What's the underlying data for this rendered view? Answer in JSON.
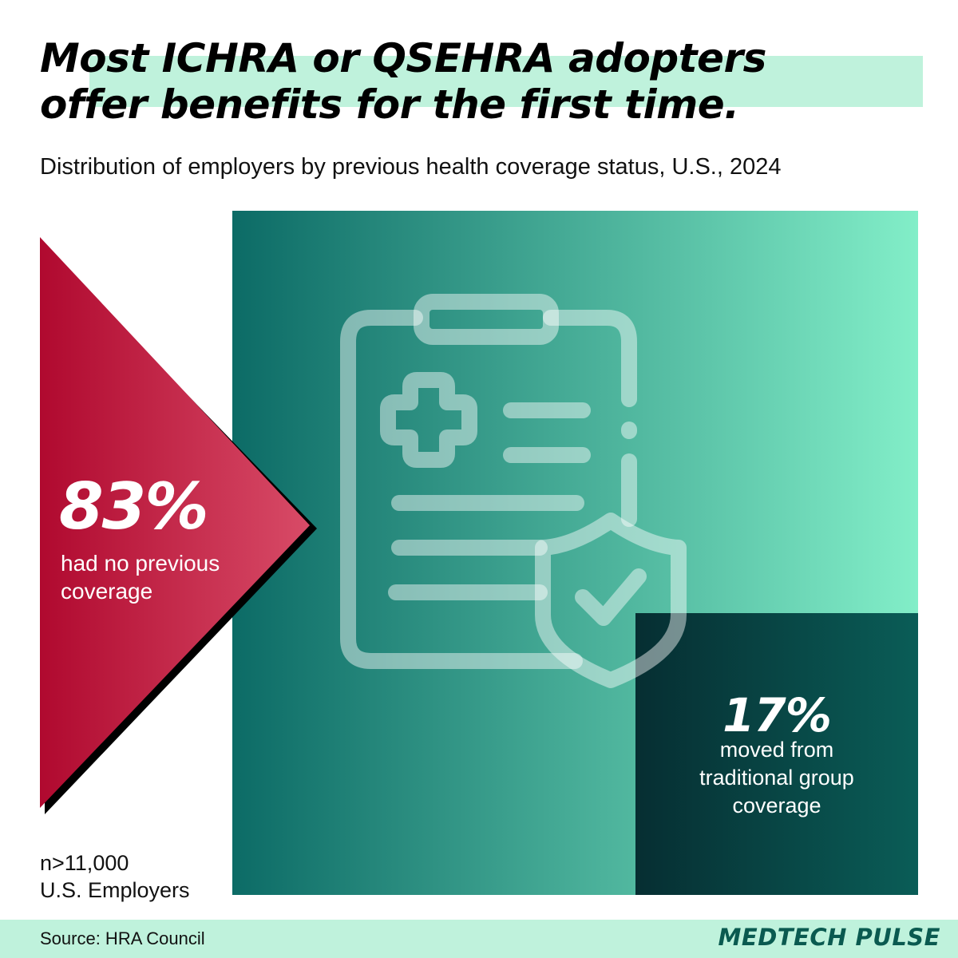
{
  "header": {
    "title_line1": "Most ICHRA or QSEHRA adopters",
    "title_line2": "offer benefits for the first time.",
    "subtitle": "Distribution of employers by previous health coverage status, U.S., 2024"
  },
  "chart_data": {
    "type": "area",
    "categories": [
      "had no previous coverage",
      "moved from traditional group coverage"
    ],
    "values": [
      83,
      17
    ],
    "value_labels": [
      "83%",
      "17%"
    ],
    "unit": "%",
    "title": "Most ICHRA or QSEHRA adopters offer benefits for the first time.",
    "subtitle": "Distribution of employers by previous health coverage status, U.S., 2024"
  },
  "labels": {
    "no_previous_value": "83%",
    "no_previous_desc_line1": "had no previous",
    "no_previous_desc_line2": "coverage",
    "moved_value": "17%",
    "moved_desc_line1": "moved from",
    "moved_desc_line2": "traditional group",
    "moved_desc_line3": "coverage"
  },
  "sample": {
    "line1": "n>11,000",
    "line2": "U.S. Employers"
  },
  "footer": {
    "source": "Source: HRA Council",
    "brand": "MEDTECH PULSE"
  },
  "colors": {
    "highlight": "#bff2dc",
    "teal_dark": "#0c6b66",
    "teal_light": "#82eec8",
    "crimson_dark": "#b0092f",
    "crimson_light": "#d84b67",
    "deep_teal_dark": "#062e32",
    "deep_teal_light": "#0a5d57",
    "brand": "#0a5a50"
  },
  "icons": [
    "clipboard-icon",
    "medical-cross-icon",
    "shield-check-icon",
    "arrow-triangle"
  ]
}
